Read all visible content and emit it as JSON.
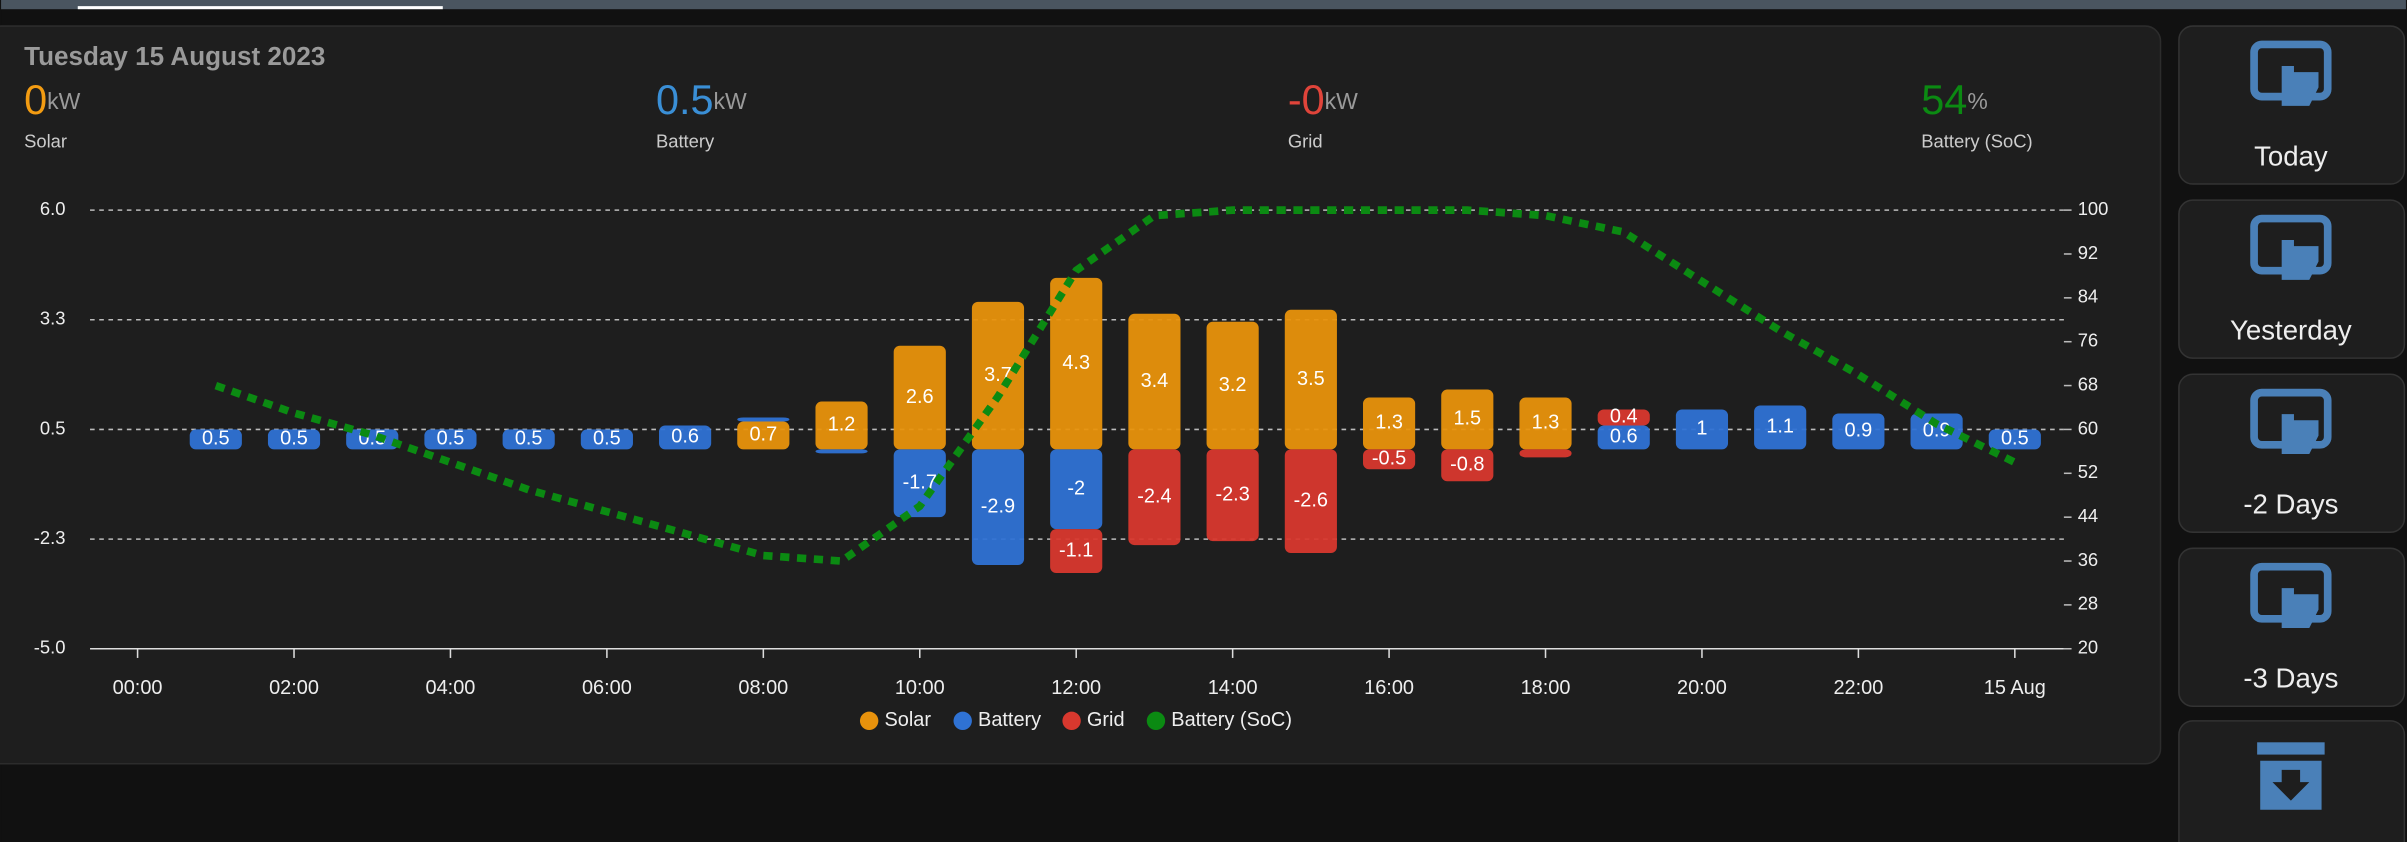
{
  "header": {
    "date": "Tuesday 15 August 2023",
    "stats": [
      {
        "value": "0",
        "unit": "kW",
        "label": "Solar"
      },
      {
        "value": "0.5",
        "unit": "kW",
        "label": "Battery"
      },
      {
        "value": "-0",
        "unit": "kW",
        "label": "Grid"
      },
      {
        "value": "54",
        "unit": "%",
        "label": "Battery (SoC)"
      }
    ]
  },
  "buttons": [
    "Today",
    "Yesterday",
    "-2 Days",
    "-3 Days"
  ],
  "chart_data": {
    "type": "bar",
    "stacked": true,
    "categories": [
      "00:00",
      null,
      "02:00",
      null,
      "04:00",
      null,
      "06:00",
      null,
      "08:00",
      null,
      "10:00",
      null,
      "12:00",
      null,
      "14:00",
      null,
      "16:00",
      null,
      "18:00",
      null,
      "20:00",
      null,
      "22:00",
      null,
      "15 Aug"
    ],
    "series": [
      {
        "name": "Solar",
        "color": "#e8920c",
        "values": [
          null,
          0,
          0,
          0,
          0,
          0,
          0,
          0,
          0.7,
          1.2,
          2.6,
          3.7,
          4.3,
          3.4,
          3.2,
          3.5,
          1.3,
          1.5,
          1.3,
          0,
          0,
          0,
          0,
          0,
          0
        ]
      },
      {
        "name": "Battery",
        "color": "#2f72d4",
        "values": [
          null,
          0.5,
          0.5,
          0.5,
          0.5,
          0.5,
          0.5,
          0.6,
          0.1,
          -0.1,
          -1.7,
          -2.9,
          -2,
          0,
          0,
          0,
          0,
          0,
          0,
          0.6,
          1,
          1.1,
          0.9,
          0.9,
          0.5
        ]
      },
      {
        "name": "Grid",
        "color": "#d8382e",
        "values": [
          null,
          0,
          0,
          0,
          0,
          0,
          0,
          0,
          0,
          0,
          0,
          0,
          -1.1,
          -2.4,
          -2.3,
          -2.6,
          -0.5,
          -0.8,
          -0.2,
          0.4,
          0,
          0,
          0,
          0,
          0
        ]
      },
      {
        "name": "Battery (SoC)",
        "type": "line",
        "axis": "y2",
        "color": "#0b8a12",
        "values": [
          null,
          68,
          63,
          59,
          54,
          49,
          45,
          41,
          37,
          36,
          46,
          66,
          89,
          99,
          100,
          100,
          100,
          100,
          99,
          96,
          87,
          78,
          70,
          61,
          54
        ]
      }
    ],
    "ylim": [
      -5,
      6
    ],
    "yticks": [
      {
        "value": -5,
        "label": "-5.0"
      },
      {
        "value": -2.25,
        "label": "-2.3"
      },
      0.5,
      {
        "value": 3.25,
        "label": "3.3"
      },
      {
        "value": 6,
        "label": "6.0"
      }
    ],
    "y2lim": [
      20,
      100
    ],
    "y2ticks": [
      20,
      28,
      36,
      44,
      52,
      60,
      68,
      76,
      84,
      92,
      100
    ],
    "grid": true
  }
}
